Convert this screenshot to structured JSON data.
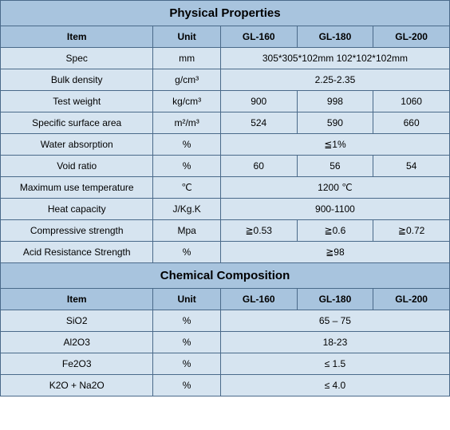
{
  "colors": {
    "header_bg": "#a8c4de",
    "cell_bg": "#d6e4f0",
    "border": "#4a6a8a",
    "text": "#000000"
  },
  "physical": {
    "title": "Physical Properties",
    "headers": {
      "item": "Item",
      "unit": "Unit",
      "c1": "GL-160",
      "c2": "GL-180",
      "c3": "GL-200"
    },
    "rows": {
      "spec": {
        "item": "Spec",
        "unit": "mm",
        "merged": "305*305*102mm  102*102*102mm"
      },
      "bulk_density": {
        "item": "Bulk density",
        "unit": "g/cm³",
        "merged": "2.25-2.35"
      },
      "test_weight": {
        "item": "Test weight",
        "unit": "kg/cm³",
        "c1": "900",
        "c2": "998",
        "c3": "1060"
      },
      "surface_area": {
        "item": "Specific surface area",
        "unit": "m²/m³",
        "c1": "524",
        "c2": "590",
        "c3": "660"
      },
      "water_abs": {
        "item": "Water absorption",
        "unit": "%",
        "merged": "≦1%"
      },
      "void_ratio": {
        "item": "Void ratio",
        "unit": "%",
        "c1": "60",
        "c2": "56",
        "c3": "54"
      },
      "max_temp": {
        "item": "Maximum use temperature",
        "unit": "℃",
        "merged": "1200 ℃"
      },
      "heat_cap": {
        "item": "Heat capacity",
        "unit": "J/Kg.K",
        "merged": "900-1100"
      },
      "comp_strength": {
        "item": "Compressive strength",
        "unit": "Mpa",
        "c1": "≧0.53",
        "c2": "≧0.6",
        "c3": "≧0.72"
      },
      "acid_res": {
        "item": "Acid Resistance Strength",
        "unit": "%",
        "merged": "≧98"
      }
    }
  },
  "chemical": {
    "title": "Chemical Composition",
    "headers": {
      "item": "Item",
      "unit": "Unit",
      "c1": "GL-160",
      "c2": "GL-180",
      "c3": "GL-200"
    },
    "rows": {
      "sio2": {
        "item": "SiO2",
        "unit": "%",
        "merged": "65 – 75"
      },
      "al2o3": {
        "item": "Al2O3",
        "unit": "%",
        "merged": "18-23"
      },
      "fe2o3": {
        "item": "Fe2O3",
        "unit": "%",
        "merged": "≤ 1.5"
      },
      "k2o_na2o": {
        "item": "K2O + Na2O",
        "unit": "%",
        "merged": "≤ 4.0"
      }
    }
  }
}
